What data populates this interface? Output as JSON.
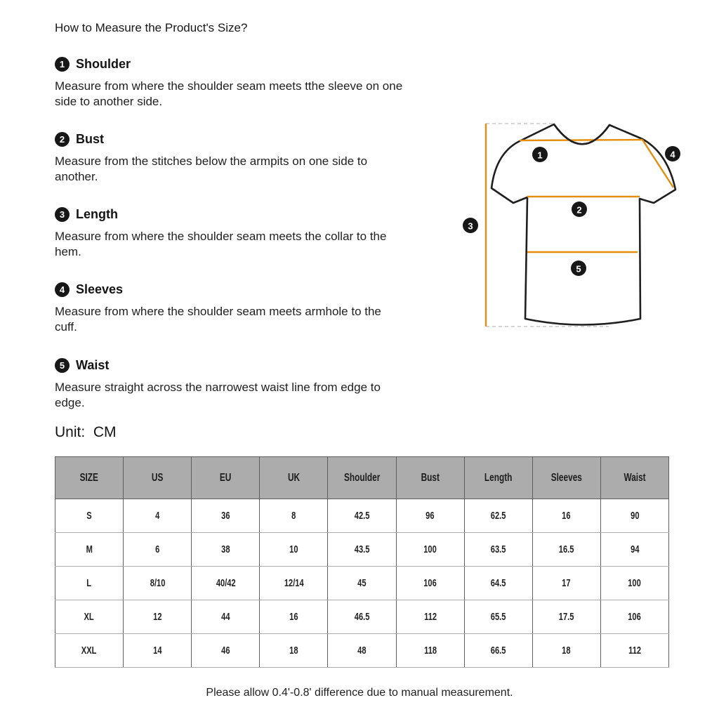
{
  "page": {
    "title": "How to Measure the Product's Size?",
    "sections": [
      {
        "num": "1",
        "label": "Shoulder",
        "desc": "Measure from where the shoulder seam meets tthe sleeve on one\nside to another side."
      },
      {
        "num": "2",
        "label": "Bust",
        "desc": "Measure from the stitches below the armpits on one side to\nanother."
      },
      {
        "num": "3",
        "label": "Length",
        "desc": "Measure from where the shoulder seam meets the collar to the\nhem."
      },
      {
        "num": "4",
        "label": "Sleeves",
        "desc": "Measure from where the shoulder seam meets armhole to the\ncuff."
      },
      {
        "num": "5",
        "label": "Waist",
        "desc": "Measure straight across the narrowest waist line from edge to\nedge."
      }
    ],
    "unit_label": "Unit:  CM",
    "footnote": "Please allow 0.4'-0.8' difference due to manual measurement."
  },
  "diagram": {
    "markers": [
      "1",
      "2",
      "3",
      "4",
      "5"
    ],
    "measure_line_color": "#e28e10",
    "outline_color": "#1f1f1f",
    "dash_color": "#c8c8c8"
  },
  "size_table": {
    "headers": [
      "SIZE",
      "US",
      "EU",
      "UK",
      "Shoulder",
      "Bust",
      "Length",
      "Sleeves",
      "Waist"
    ],
    "rows": [
      [
        "S",
        "4",
        "36",
        "8",
        "42.5",
        "96",
        "62.5",
        "16",
        "90"
      ],
      [
        "M",
        "6",
        "38",
        "10",
        "43.5",
        "100",
        "63.5",
        "16.5",
        "94"
      ],
      [
        "L",
        "8/10",
        "40/42",
        "12/14",
        "45",
        "106",
        "64.5",
        "17",
        "100"
      ],
      [
        "XL",
        "12",
        "44",
        "16",
        "46.5",
        "112",
        "65.5",
        "17.5",
        "106"
      ],
      [
        "XXL",
        "14",
        "46",
        "18",
        "48",
        "118",
        "66.5",
        "18",
        "112"
      ]
    ]
  }
}
